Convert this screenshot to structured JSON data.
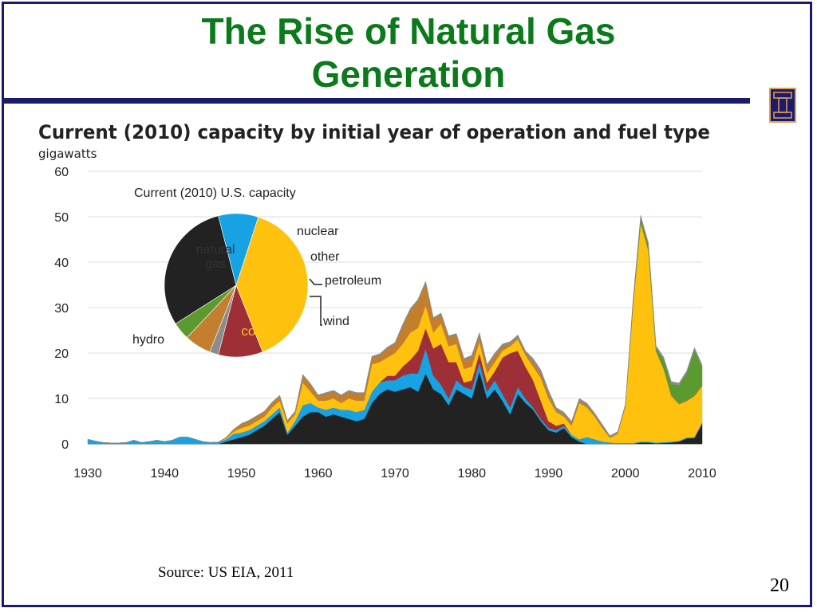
{
  "slide": {
    "title_line1": "The Rise of Natural Gas",
    "title_line2": "Generation",
    "source": "Source: US EIA, 2011",
    "page_number": "20"
  },
  "colors": {
    "title": "#0b7a1a",
    "rule": "#1b1b6e",
    "coal": "#222222",
    "hydro": "#17a3e3",
    "nuclear": "#9e2f36",
    "natural_gas": "#fec20e",
    "petroleum": "#c47f2e",
    "wind": "#5a9a2e",
    "other": "#8c8c8c"
  },
  "chart_data": [
    {
      "type": "area",
      "title": "Current (2010)  capacity  by initial  year of operation  and fuel type",
      "ylabel": "gigawatts",
      "xlabel": "",
      "xlim": [
        1930,
        2010
      ],
      "ylim": [
        0,
        60
      ],
      "x_ticks": [
        1930,
        1940,
        1950,
        1960,
        1970,
        1980,
        1990,
        2000,
        2010
      ],
      "y_ticks": [
        0,
        10,
        20,
        30,
        40,
        50,
        60
      ],
      "grid": true,
      "stacked": true,
      "x": [
        1930,
        1931,
        1932,
        1933,
        1934,
        1935,
        1936,
        1937,
        1938,
        1939,
        1940,
        1941,
        1942,
        1943,
        1944,
        1945,
        1946,
        1947,
        1948,
        1949,
        1950,
        1951,
        1952,
        1953,
        1954,
        1955,
        1956,
        1957,
        1958,
        1959,
        1960,
        1961,
        1962,
        1963,
        1964,
        1965,
        1966,
        1967,
        1968,
        1969,
        1970,
        1971,
        1972,
        1973,
        1974,
        1975,
        1976,
        1977,
        1978,
        1979,
        1980,
        1981,
        1982,
        1983,
        1984,
        1985,
        1986,
        1987,
        1988,
        1989,
        1990,
        1991,
        1992,
        1993,
        1994,
        1995,
        1996,
        1997,
        1998,
        1999,
        2000,
        2001,
        2002,
        2003,
        2004,
        2005,
        2006,
        2007,
        2008,
        2009,
        2010
      ],
      "series": [
        {
          "key": "coal",
          "values": [
            0,
            0,
            0,
            0,
            0,
            0,
            0,
            0,
            0,
            0,
            0,
            0,
            0,
            0,
            0,
            0,
            0,
            0,
            0.5,
            1,
            1.5,
            2,
            3,
            4,
            5.5,
            7,
            2,
            4,
            6,
            7,
            7,
            6,
            6.5,
            6,
            5.5,
            5,
            5.5,
            9,
            11,
            12,
            11.5,
            12,
            12.5,
            11.5,
            15.5,
            12,
            11,
            8.5,
            12,
            11,
            10,
            16,
            10,
            12,
            9.5,
            6.5,
            11,
            9,
            7.5,
            5,
            3,
            2.5,
            3.5,
            1.5,
            0.5,
            0,
            0,
            0,
            0,
            0,
            0,
            0,
            0.3,
            0.3,
            0.1,
            0.2,
            0.3,
            0.5,
            1.2,
            1.3,
            4.5
          ]
        },
        {
          "key": "hydro",
          "values": [
            1,
            0.6,
            0.3,
            0.2,
            0.2,
            0.3,
            0.8,
            0.3,
            0.5,
            0.8,
            0.5,
            0.8,
            1.5,
            1.5,
            1,
            0.5,
            0.3,
            0.4,
            0.5,
            1.2,
            1,
            1,
            1,
            1,
            1,
            1,
            0.5,
            1,
            2.5,
            2,
            1,
            1.5,
            1.5,
            1.5,
            2,
            2,
            2,
            2.5,
            2.5,
            2,
            2.5,
            3,
            3,
            4,
            5.5,
            3,
            2,
            1.5,
            2,
            1.5,
            2,
            2,
            1.5,
            2,
            1.5,
            1.5,
            1.5,
            1,
            0.5,
            0.5,
            0.5,
            0.5,
            0.5,
            0.5,
            0.5,
            1.5,
            1,
            0.5,
            0.3,
            0.2,
            0.2,
            0.2,
            0.2,
            0.2,
            0.2,
            0.2,
            0.2,
            0.2,
            0.2,
            0.2,
            0.2
          ]
        },
        {
          "key": "nuclear",
          "values": [
            0,
            0,
            0,
            0,
            0,
            0,
            0,
            0,
            0,
            0,
            0,
            0,
            0,
            0,
            0,
            0,
            0,
            0,
            0,
            0,
            0,
            0,
            0,
            0,
            0,
            0,
            0,
            0,
            0,
            0,
            0,
            0,
            0,
            0,
            0,
            0,
            0,
            0,
            0,
            1,
            1,
            2,
            3,
            5,
            4.5,
            6,
            9,
            8,
            4,
            1,
            2,
            2,
            2,
            2,
            8,
            12,
            8,
            7,
            6,
            4,
            1.5,
            1,
            0.5,
            0,
            0,
            0,
            0,
            0,
            0,
            0,
            0,
            0,
            0,
            0,
            0,
            0,
            0,
            0,
            0,
            0,
            0
          ]
        },
        {
          "key": "natural_gas",
          "values": [
            0,
            0,
            0,
            0,
            0,
            0,
            0,
            0,
            0,
            0,
            0,
            0,
            0,
            0,
            0,
            0,
            0,
            0,
            0.2,
            0.5,
            1,
            1,
            1,
            1,
            1.5,
            1.5,
            2,
            1.5,
            5,
            2.5,
            1.5,
            2,
            2,
            1.5,
            2.5,
            2.5,
            2,
            6,
            4.5,
            4,
            5,
            5,
            6,
            5,
            5,
            3.5,
            4.5,
            3.5,
            4,
            3,
            3,
            2.5,
            2,
            2,
            1.5,
            1.5,
            2.5,
            2.5,
            3,
            5,
            5,
            3,
            1.5,
            2,
            8,
            6.5,
            5,
            3,
            1,
            2,
            8,
            30,
            48,
            42,
            20,
            16,
            10,
            8,
            8,
            9,
            8
          ]
        },
        {
          "key": "petroleum",
          "values": [
            0,
            0,
            0,
            0,
            0,
            0,
            0,
            0,
            0,
            0,
            0,
            0,
            0,
            0,
            0,
            0,
            0,
            0,
            0.2,
            0.5,
            0.8,
            1,
            1,
            1,
            1,
            1,
            0.5,
            0.5,
            1.5,
            1.5,
            1,
            1.5,
            1.5,
            1.5,
            1.5,
            1.5,
            1.5,
            1.5,
            1.5,
            2,
            2,
            4,
            5,
            6,
            5,
            3,
            2,
            2,
            2,
            2,
            2,
            1.5,
            1.5,
            1.5,
            1,
            0.5,
            0.5,
            0.5,
            1,
            1,
            1,
            0.5,
            0.5,
            0.5,
            0.5,
            0.5,
            0.5,
            0.5,
            0.2,
            0.2,
            0.2,
            0.3,
            0.3,
            0.3,
            0.3,
            0.2,
            0.2,
            0.2,
            0.2,
            0.2,
            0.2
          ]
        },
        {
          "key": "wind",
          "values": [
            0,
            0,
            0,
            0,
            0,
            0,
            0,
            0,
            0,
            0,
            0,
            0,
            0,
            0,
            0,
            0,
            0,
            0,
            0,
            0,
            0,
            0,
            0,
            0,
            0,
            0,
            0,
            0,
            0,
            0,
            0,
            0,
            0,
            0,
            0,
            0,
            0,
            0,
            0,
            0,
            0,
            0,
            0,
            0,
            0,
            0,
            0,
            0,
            0,
            0,
            0,
            0,
            0,
            0,
            0,
            0,
            0,
            0,
            0,
            0,
            0,
            0,
            0,
            0,
            0,
            0,
            0,
            0,
            0,
            0,
            0,
            0.5,
            1,
            1,
            0.5,
            2,
            2.5,
            4,
            6,
            10,
            4
          ]
        },
        {
          "key": "other",
          "values": [
            0,
            0,
            0,
            0,
            0,
            0,
            0,
            0,
            0,
            0,
            0,
            0,
            0,
            0,
            0,
            0,
            0,
            0,
            0,
            0,
            0.2,
            0.2,
            0.2,
            0.2,
            0.2,
            0.2,
            0.2,
            0.2,
            0.3,
            0.3,
            0.3,
            0.3,
            0.3,
            0.3,
            0.3,
            0.3,
            0.3,
            0.3,
            0.3,
            0.3,
            0.3,
            0.3,
            0.3,
            0.3,
            0.3,
            0.3,
            0.3,
            0.3,
            0.3,
            0.3,
            0.5,
            0.5,
            0.5,
            0.5,
            0.5,
            0.5,
            0.5,
            0.5,
            0.8,
            0.8,
            0.8,
            0.5,
            0.5,
            0.5,
            0.5,
            0.5,
            0.3,
            0.3,
            0.3,
            0.3,
            0.3,
            0.5,
            0.5,
            0.5,
            0.5,
            0.5,
            0.5,
            0.5,
            0.5,
            0.5,
            0.5
          ]
        }
      ]
    },
    {
      "type": "pie",
      "title": "Current (2010) U.S. capacity",
      "slices": [
        {
          "key": "natural_gas",
          "label": "natural\ngas",
          "value": 39
        },
        {
          "key": "nuclear",
          "label": "nuclear",
          "value": 10
        },
        {
          "key": "other",
          "label": "other",
          "value": 2
        },
        {
          "key": "petroleum",
          "label": "petroleum",
          "value": 6
        },
        {
          "key": "wind",
          "label": "wind",
          "value": 4
        },
        {
          "key": "coal",
          "label": "coal",
          "value": 30
        },
        {
          "key": "hydro",
          "label": "hydro",
          "value": 9
        }
      ]
    }
  ]
}
